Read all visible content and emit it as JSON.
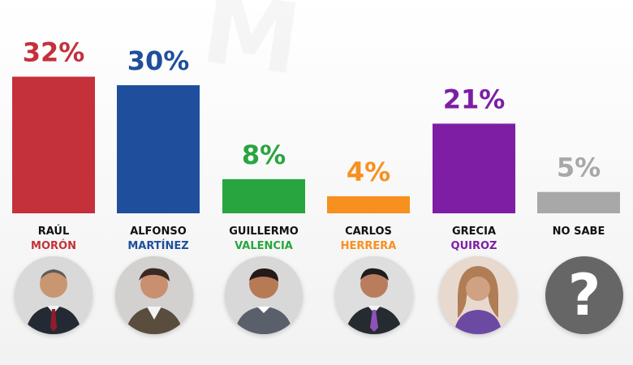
{
  "chart_data": {
    "type": "bar",
    "categories": [
      "RAÚL MORÓN",
      "ALFONSO MARTÍNEZ",
      "GUILLERMO VALENCIA",
      "CARLOS HERRERA",
      "GRECIA QUIROZ",
      "NO SABE"
    ],
    "values": [
      32,
      30,
      8,
      4,
      21,
      5
    ],
    "data_labels": [
      "32%",
      "30%",
      "8%",
      "4%",
      "21%",
      "5%"
    ],
    "colors": [
      "#c4313b",
      "#1f4f9c",
      "#29a53f",
      "#f7901e",
      "#7d1ea5",
      "#a8a8a8"
    ],
    "ylim": [
      0,
      34
    ],
    "grid": false
  },
  "candidates": [
    {
      "first_name": "RAÚL",
      "last_name": "MORÓN",
      "name_color": "#c4313b",
      "avatar_icon": "person-portrait-icon"
    },
    {
      "first_name": "ALFONSO",
      "last_name": "MARTÍNEZ",
      "name_color": "#1f4f9c",
      "avatar_icon": "person-portrait-icon"
    },
    {
      "first_name": "GUILLERMO",
      "last_name": "VALENCIA",
      "name_color": "#29a53f",
      "avatar_icon": "person-portrait-icon"
    },
    {
      "first_name": "CARLOS",
      "last_name": "HERRERA",
      "name_color": "#f7901e",
      "avatar_icon": "person-portrait-icon"
    },
    {
      "first_name": "GRECIA",
      "last_name": "QUIROZ",
      "name_color": "#7d1ea5",
      "avatar_icon": "person-portrait-icon"
    },
    {
      "first_name": "NO SABE",
      "last_name": "",
      "name_color": "#111111",
      "avatar_icon": "question-mark-icon",
      "avatar_text": "?"
    }
  ],
  "background_color": "#f7f7f7"
}
